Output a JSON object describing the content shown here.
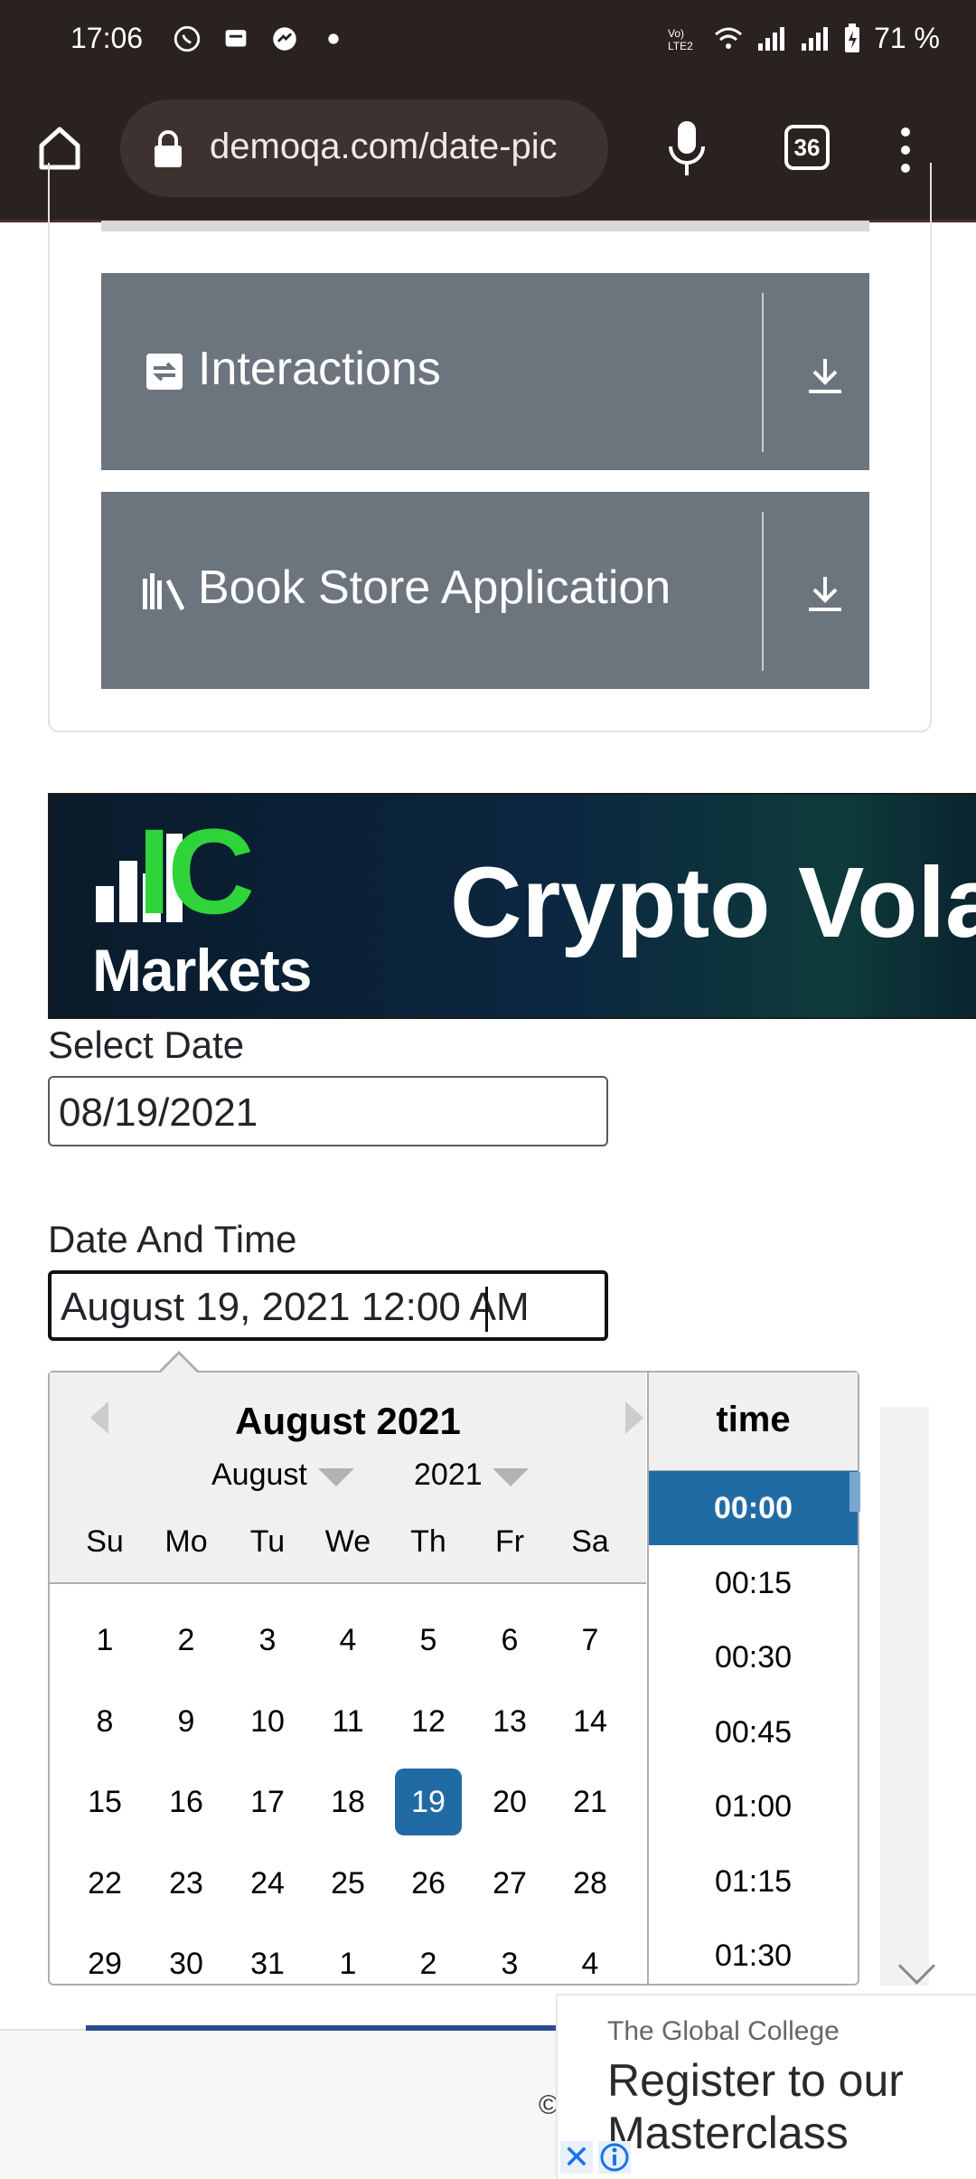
{
  "status_bar": {
    "time": "17:06",
    "battery": "71 %"
  },
  "browser": {
    "url": "demoqa.com/date-pic",
    "tab_count": "36"
  },
  "menu_groups": [
    {
      "label": "Interactions"
    },
    {
      "label": "Book Store Application"
    }
  ],
  "ad_banner": {
    "brand_ic": "IC",
    "brand_markets": "Markets",
    "headline": "Crypto Vola"
  },
  "form": {
    "select_date_label": "Select Date",
    "select_date_value": "08/19/2021",
    "date_time_label": "Date And Time",
    "date_time_value": "August 19, 2021 12:00 AM"
  },
  "datepicker": {
    "title": "August 2021",
    "month_select": "August",
    "year_select": "2021",
    "weekdays": [
      "Su",
      "Mo",
      "Tu",
      "We",
      "Th",
      "Fr",
      "Sa"
    ],
    "weeks": [
      [
        "1",
        "2",
        "3",
        "4",
        "5",
        "6",
        "7"
      ],
      [
        "8",
        "9",
        "10",
        "11",
        "12",
        "13",
        "14"
      ],
      [
        "15",
        "16",
        "17",
        "18",
        "19",
        "20",
        "21"
      ],
      [
        "22",
        "23",
        "24",
        "25",
        "26",
        "27",
        "28"
      ],
      [
        "29",
        "30",
        "31",
        "1",
        "2",
        "3",
        "4"
      ]
    ],
    "selected_day": "19",
    "time_header": "time",
    "times": [
      "00:00",
      "00:15",
      "00:30",
      "00:45",
      "01:00",
      "01:15",
      "01:30"
    ],
    "selected_time": "00:00",
    "accent_color": "#216ba5"
  },
  "footer": {
    "copyright": "©"
  },
  "small_ad": {
    "advertiser": "The Global College",
    "headline": "Register to our Masterclass",
    "close_icon": "close-icon",
    "info_icon": "info-icon"
  }
}
